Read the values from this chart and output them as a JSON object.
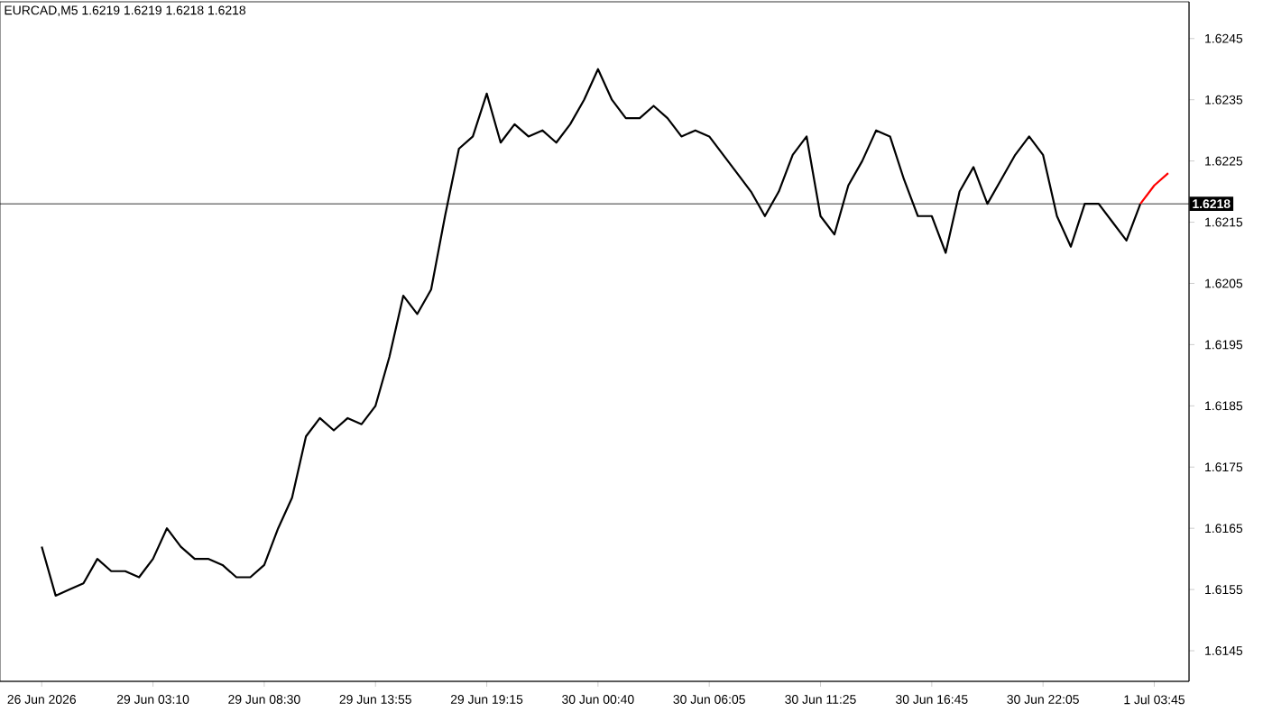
{
  "chart_data": {
    "type": "line",
    "title": "EURCAD,M5 1.6219 1.6219 1.6218 1.6218",
    "categories": [
      "26 Jun 2026",
      null,
      null,
      null,
      null,
      null,
      null,
      null,
      "29 Jun 03:10",
      null,
      null,
      null,
      null,
      null,
      null,
      null,
      "29 Jun 08:30",
      null,
      null,
      null,
      null,
      null,
      null,
      null,
      "29 Jun 13:55",
      null,
      null,
      null,
      null,
      null,
      null,
      null,
      "29 Jun 19:15",
      null,
      null,
      null,
      null,
      null,
      null,
      null,
      "30 Jun 00:40",
      null,
      null,
      null,
      null,
      null,
      null,
      null,
      "30 Jun 06:05",
      null,
      null,
      null,
      null,
      null,
      null,
      null,
      "30 Jun 11:25",
      null,
      null,
      null,
      null,
      null,
      null,
      null,
      "30 Jun 16:45",
      null,
      null,
      null,
      null,
      null,
      null,
      null,
      "30 Jun 22:05",
      null,
      null,
      null,
      null,
      null,
      null,
      null,
      "1 Jul 03:45",
      null
    ],
    "series": [
      {
        "color": "#000000",
        "values": [
          1.6162,
          1.6154,
          1.6155,
          1.6156,
          1.616,
          1.6158,
          1.6158,
          1.6157,
          1.616,
          1.6165,
          1.6162,
          1.616,
          1.616,
          1.6159,
          1.6157,
          1.6157,
          1.6159,
          1.6165,
          1.617,
          1.618,
          1.6183,
          1.6181,
          1.6183,
          1.6182,
          1.6185,
          1.6193,
          1.6203,
          1.62,
          1.6204,
          1.6216,
          1.6227,
          1.6229,
          1.6236,
          1.6228,
          1.6231,
          1.6229,
          1.623,
          1.6228,
          1.6231,
          1.6235,
          1.624,
          1.6235,
          1.6232,
          1.6232,
          1.6234,
          1.6232,
          1.6229,
          1.623,
          1.6229,
          1.6226,
          1.6223,
          1.622,
          1.6216,
          1.622,
          1.6226,
          1.6229,
          1.6216,
          1.6213,
          1.6221,
          1.6225,
          1.623,
          1.6229,
          1.6222,
          1.6216,
          1.6216,
          1.621,
          1.622,
          1.6224,
          1.6218,
          1.6222,
          1.6226,
          1.6229,
          1.6226,
          1.6216,
          1.6211,
          1.6218,
          1.6218,
          1.6215,
          1.6212,
          1.6218,
          null,
          null
        ]
      },
      {
        "color": "#ff0000",
        "values": [
          null,
          null,
          null,
          null,
          null,
          null,
          null,
          null,
          null,
          null,
          null,
          null,
          null,
          null,
          null,
          null,
          null,
          null,
          null,
          null,
          null,
          null,
          null,
          null,
          null,
          null,
          null,
          null,
          null,
          null,
          null,
          null,
          null,
          null,
          null,
          null,
          null,
          null,
          null,
          null,
          null,
          null,
          null,
          null,
          null,
          null,
          null,
          null,
          null,
          null,
          null,
          null,
          null,
          null,
          null,
          null,
          null,
          null,
          null,
          null,
          null,
          null,
          null,
          null,
          null,
          null,
          null,
          null,
          null,
          null,
          null,
          null,
          null,
          null,
          null,
          null,
          null,
          null,
          null,
          1.6218,
          1.6221,
          1.6223
        ]
      }
    ],
    "ylim": [
      1.614,
      1.6251
    ],
    "yticks": [
      1.6145,
      1.6155,
      1.6165,
      1.6175,
      1.6185,
      1.6195,
      1.6205,
      1.6215,
      1.6225,
      1.6235,
      1.6245
    ],
    "ref_lines": [
      {
        "axis": "y",
        "value": 1.6218,
        "label": "1.6218",
        "color": "#000000"
      }
    ]
  }
}
